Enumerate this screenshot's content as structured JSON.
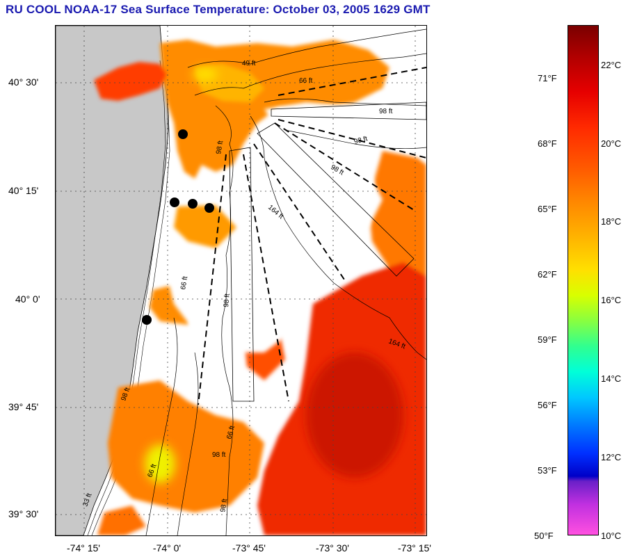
{
  "title": "RU COOL  NOAA-17  Sea Surface Temperature:  October 03, 2005 1629 GMT",
  "lat_labels": [
    "40° 30'",
    "40° 15'",
    "40° 0'",
    "39° 45'",
    "39° 30'"
  ],
  "lon_labels": [
    "-74° 15'",
    "-74° 0'",
    "-73° 45'",
    "-73° 30'",
    "-73° 15'"
  ],
  "contour_labels": [
    "49 ft",
    "66 ft",
    "98 ft",
    "98 ft",
    "98 ft",
    "98 ft",
    "164 ft",
    "164 ft",
    "98 ft",
    "66 ft",
    "66 ft",
    "98 ft",
    "98 ft",
    "66 ft",
    "98 ft",
    "33 ft"
  ],
  "colorbar": {
    "fahrenheit": [
      "71°F",
      "68°F",
      "65°F",
      "62°F",
      "59°F",
      "56°F",
      "53°F",
      "50°F"
    ],
    "celsius": [
      "22°C",
      "20°C",
      "18°C",
      "16°C",
      "14°C",
      "12°C",
      "10°C"
    ]
  },
  "colors": {
    "title": "#1a1ab0",
    "land": "#c8c8c8",
    "warm": "#ff7a00",
    "hot": "#e61a00"
  }
}
